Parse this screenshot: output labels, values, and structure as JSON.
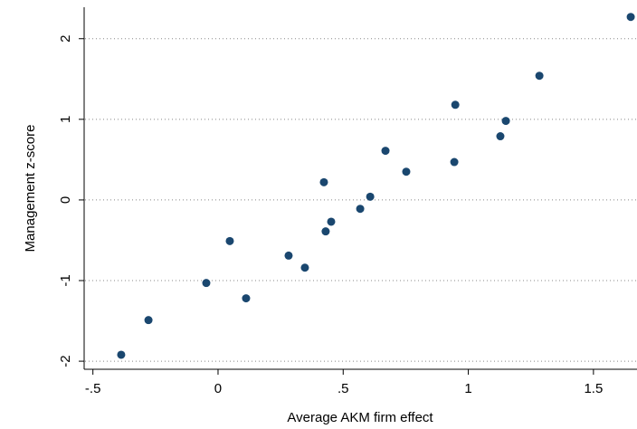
{
  "chart_data": {
    "type": "scatter",
    "x_label": "Average AKM firm effect",
    "y_label": "Management z-score",
    "series": [
      {
        "color": "#1a476f",
        "x": [
          -0.387,
          -0.278,
          -0.047,
          0.047,
          0.112,
          0.282,
          0.347,
          0.423,
          0.43,
          0.452,
          0.568,
          0.608,
          0.669,
          0.752,
          0.944,
          0.948,
          1.128,
          1.15,
          1.284,
          1.649
        ],
        "values": [
          -1.92,
          -1.49,
          -1.03,
          -0.51,
          -1.22,
          -0.69,
          -0.84,
          0.22,
          -0.39,
          -0.27,
          -0.11,
          0.04,
          0.61,
          0.35,
          0.47,
          1.18,
          0.79,
          0.98,
          1.54,
          2.27
        ]
      }
    ],
    "xlim": [
      -0.535,
      1.674
    ],
    "ylim": [
      -2.1,
      2.39
    ],
    "xticks": [
      {
        "value": -0.5,
        "label": "-.5"
      },
      0,
      {
        "value": 0.5,
        "label": ".5"
      },
      1,
      1.5
    ],
    "yticks": [
      -2,
      -1,
      0,
      1,
      2
    ],
    "grid": true
  }
}
